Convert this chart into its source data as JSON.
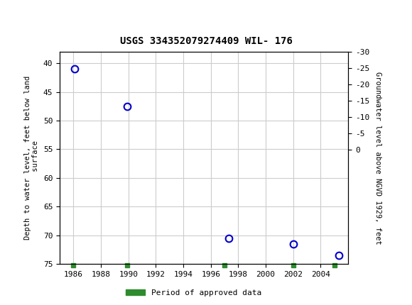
{
  "title": "USGS 334352079274409 WIL- 176",
  "header_color": "#1a6b3c",
  "x_data": [
    1986.1,
    1989.9,
    1997.3,
    2002.0,
    2005.3
  ],
  "y_data": [
    41.0,
    47.5,
    70.5,
    71.5,
    73.5
  ],
  "green_bar_x": [
    1986.0,
    1989.9,
    1997.0,
    2002.0,
    2005.0
  ],
  "xlim": [
    1985,
    2006
  ],
  "ylim_left": [
    75,
    38
  ],
  "ylim_right": [
    35,
    -2
  ],
  "yticks_left": [
    40,
    45,
    50,
    55,
    60,
    65,
    70,
    75
  ],
  "yticks_right": [
    0,
    -5,
    -10,
    -15,
    -20,
    -25,
    -30
  ],
  "xticks": [
    1986,
    1988,
    1990,
    1992,
    1994,
    1996,
    1998,
    2000,
    2002,
    2004
  ],
  "ylabel_left": "Depth to water level, feet below land\n surface",
  "ylabel_right": "Groundwater level above NGVD 1929, feet",
  "point_color": "#0000cc",
  "point_size": 7,
  "grid_color": "#cccccc",
  "legend_label": "Period of approved data",
  "legend_color": "#2e8b2e",
  "bg_color": "#ffffff"
}
